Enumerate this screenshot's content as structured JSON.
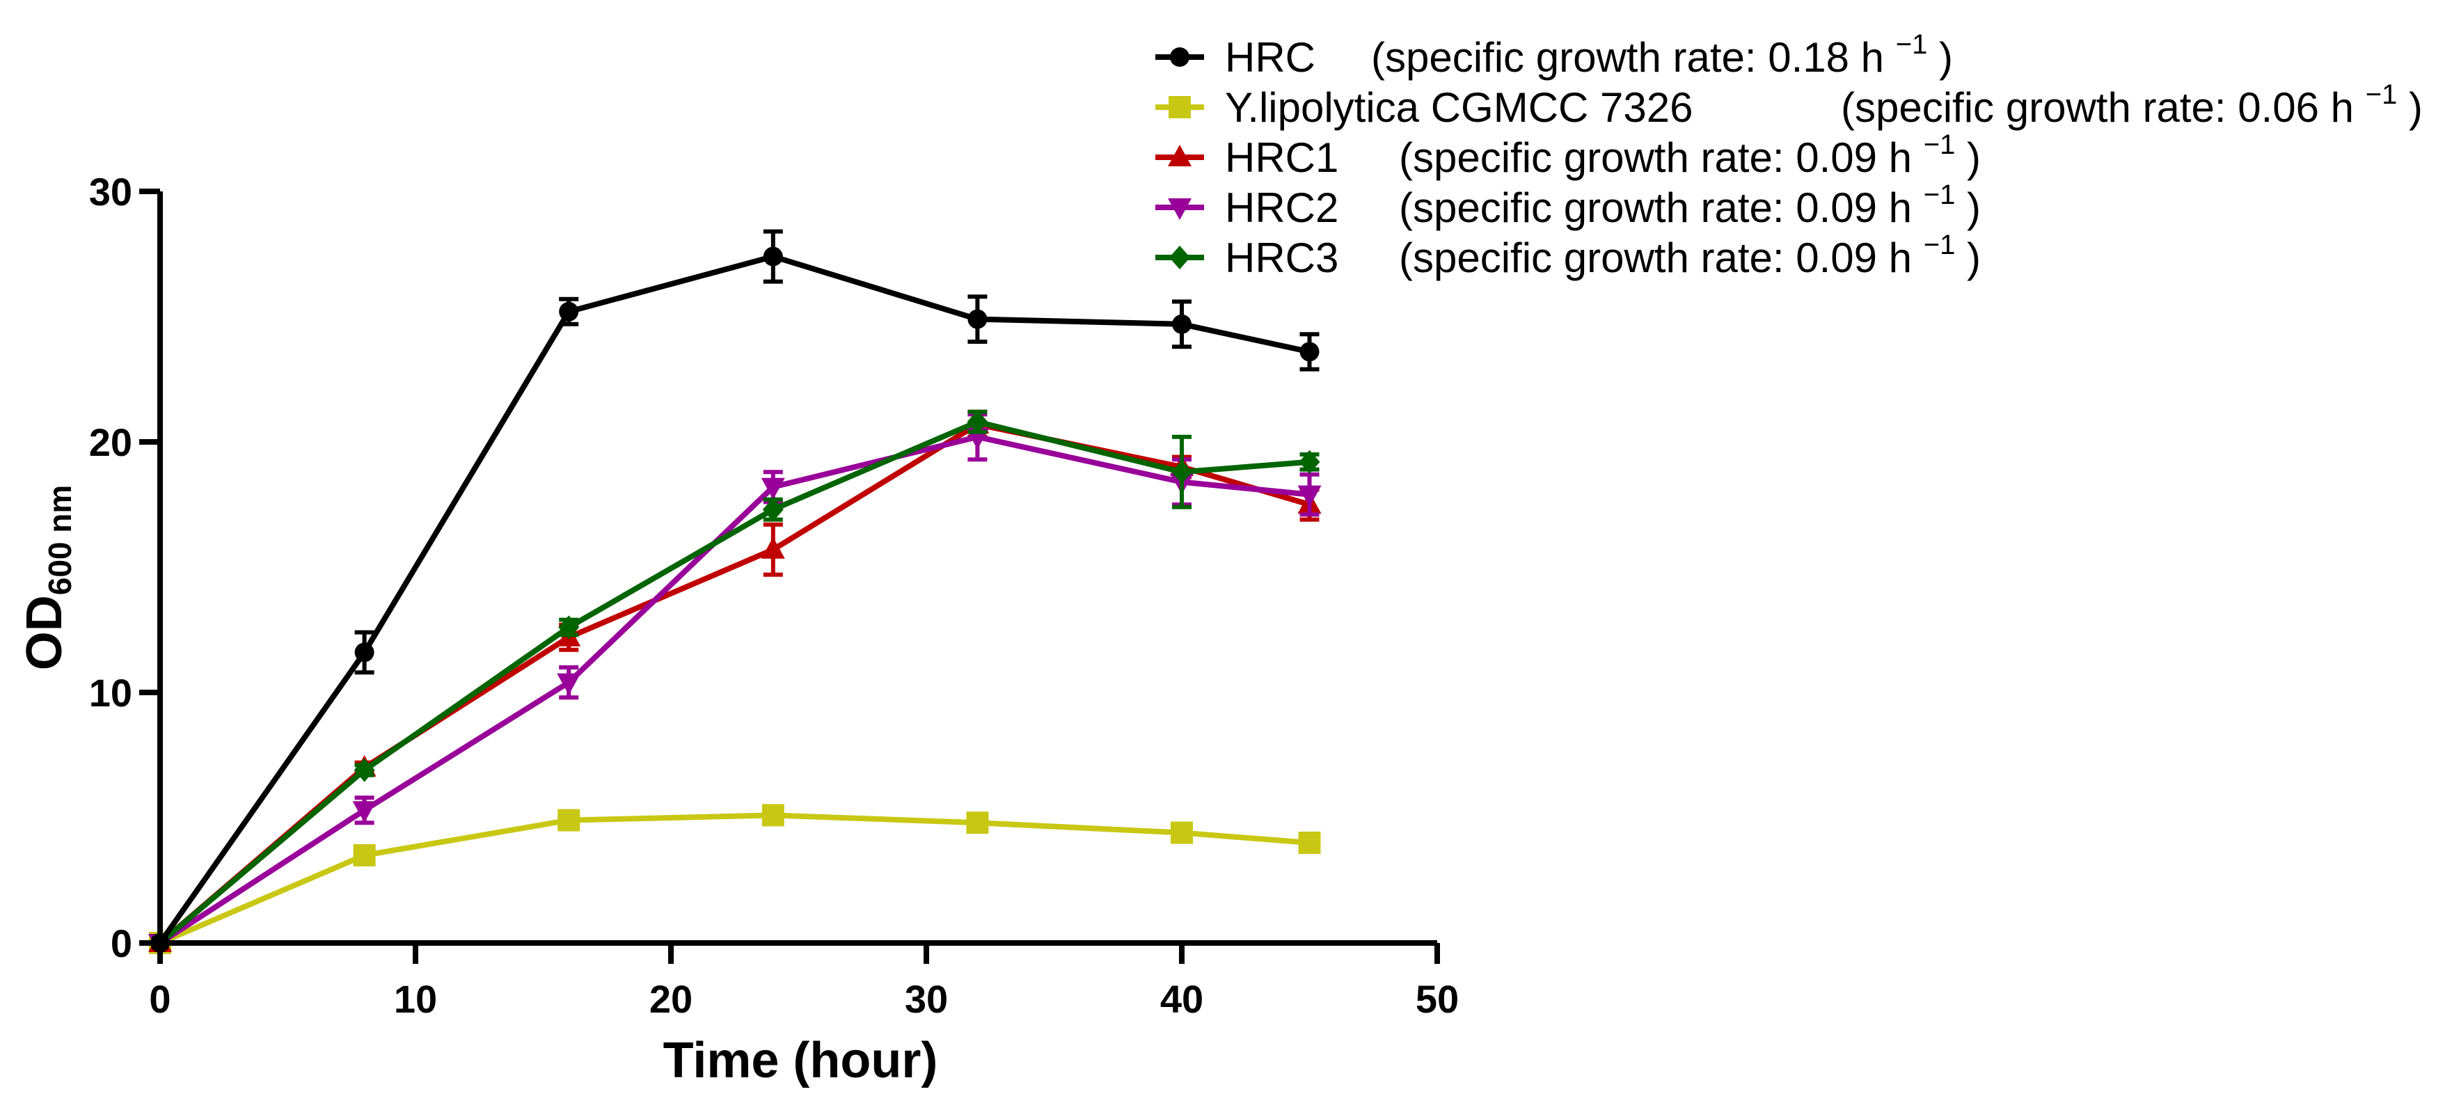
{
  "chart_data": {
    "type": "line",
    "title": "",
    "xlabel": "Time (hour)",
    "ylabel_main": "OD",
    "ylabel_sub": "600 nm",
    "xlim": [
      0,
      50
    ],
    "ylim": [
      0,
      30
    ],
    "xticks": [
      0,
      10,
      20,
      30,
      40,
      50
    ],
    "yticks": [
      0,
      10,
      20,
      30
    ],
    "x": [
      0,
      8,
      16,
      24,
      32,
      40,
      45
    ],
    "grid": false,
    "legend_position": "top-right",
    "series": [
      {
        "name": "HRC",
        "label": "(specific growth rate: 0.18 h",
        "sup": "−1",
        "close": ")",
        "color": "#000000",
        "marker": "circle",
        "values": [
          0,
          11.6,
          25.2,
          27.4,
          24.9,
          24.7,
          23.6
        ],
        "errors": [
          0,
          0.8,
          0.5,
          1.0,
          0.9,
          0.9,
          0.7
        ]
      },
      {
        "name": "Y.lipolytica CGMCC 7326",
        "label": "(specific growth rate: 0.06 h",
        "sup": "−1",
        "close": ")",
        "color": "#c8c814",
        "marker": "square",
        "values": [
          0,
          3.5,
          4.9,
          5.1,
          4.8,
          4.4,
          4.0
        ],
        "errors": [
          0,
          0.15,
          0.15,
          0.15,
          0.15,
          0.15,
          0.15
        ]
      },
      {
        "name": "HRC1",
        "label": "(specific growth rate: 0.09 h",
        "sup": "−1",
        "close": ")",
        "color": "#c00000",
        "marker": "triangle-up",
        "values": [
          0,
          7.0,
          12.2,
          15.7,
          20.7,
          19.0,
          17.5
        ],
        "errors": [
          0,
          0.2,
          0.5,
          1.0,
          0.5,
          0.4,
          0.6
        ]
      },
      {
        "name": "HRC2",
        "label": "(specific growth rate: 0.09 h",
        "sup": "−1",
        "close": ")",
        "color": "#990099",
        "marker": "triangle-down",
        "values": [
          0,
          5.3,
          10.4,
          18.2,
          20.2,
          18.4,
          17.9
        ],
        "errors": [
          0,
          0.5,
          0.6,
          0.6,
          0.9,
          0.9,
          0.8
        ]
      },
      {
        "name": "HRC3",
        "label": "(specific growth rate: 0.09 h",
        "sup": "−1",
        "close": ")",
        "color": "#006400",
        "marker": "diamond",
        "values": [
          0,
          6.9,
          12.6,
          17.3,
          20.8,
          18.8,
          19.2
        ],
        "errors": [
          0,
          0.2,
          0.3,
          0.4,
          0.4,
          1.4,
          0.3
        ]
      }
    ]
  }
}
